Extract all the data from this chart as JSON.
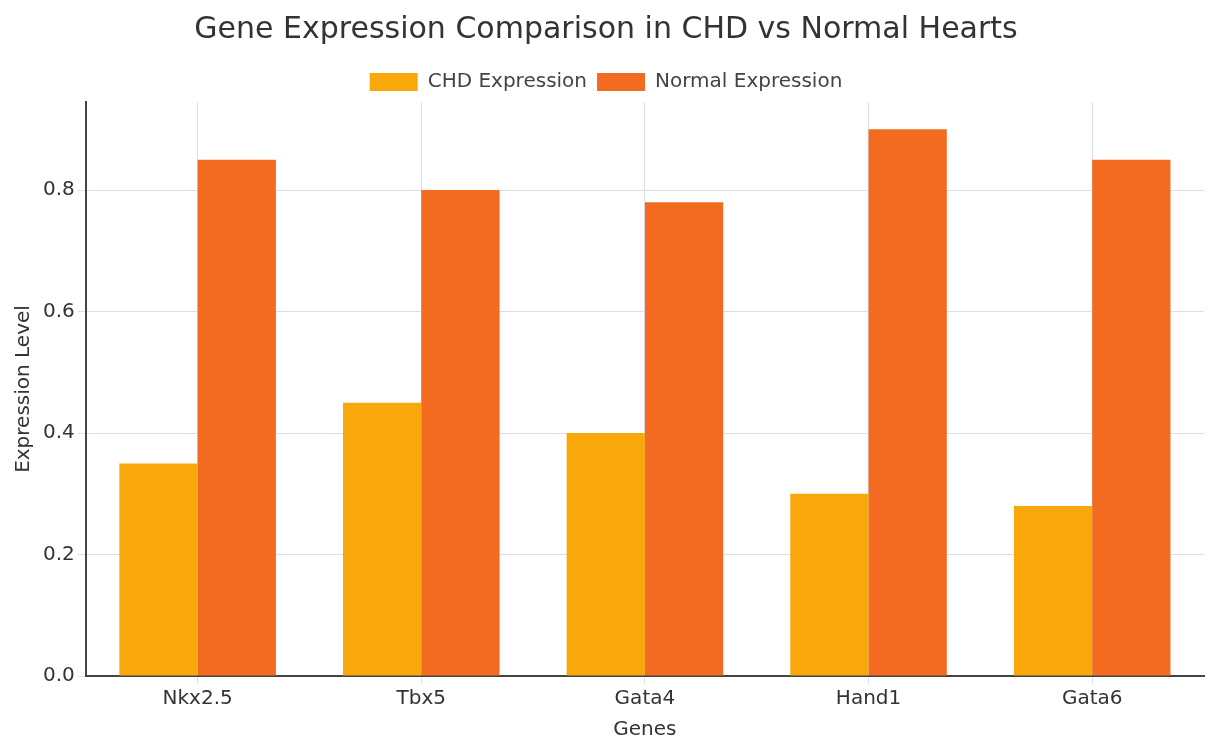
{
  "chart_data": {
    "type": "bar",
    "title": "Gene Expression Comparison in CHD vs Normal Hearts",
    "xlabel": "Genes",
    "ylabel": "Expression Level",
    "categories": [
      "Nkx2.5",
      "Tbx5",
      "Gata4",
      "Hand1",
      "Gata6"
    ],
    "series": [
      {
        "name": "CHD Expression",
        "color": "#f9a80b",
        "values": [
          0.35,
          0.45,
          0.4,
          0.3,
          0.28
        ]
      },
      {
        "name": "Normal Expression",
        "color": "#f26b21",
        "values": [
          0.85,
          0.8,
          0.78,
          0.9,
          0.85
        ]
      }
    ],
    "ylim": [
      0,
      0.945
    ],
    "yticks": [
      {
        "value": 0,
        "label": "0.0"
      },
      0.2,
      0.4,
      0.6,
      0.8
    ],
    "grid": true,
    "legend": "top"
  }
}
